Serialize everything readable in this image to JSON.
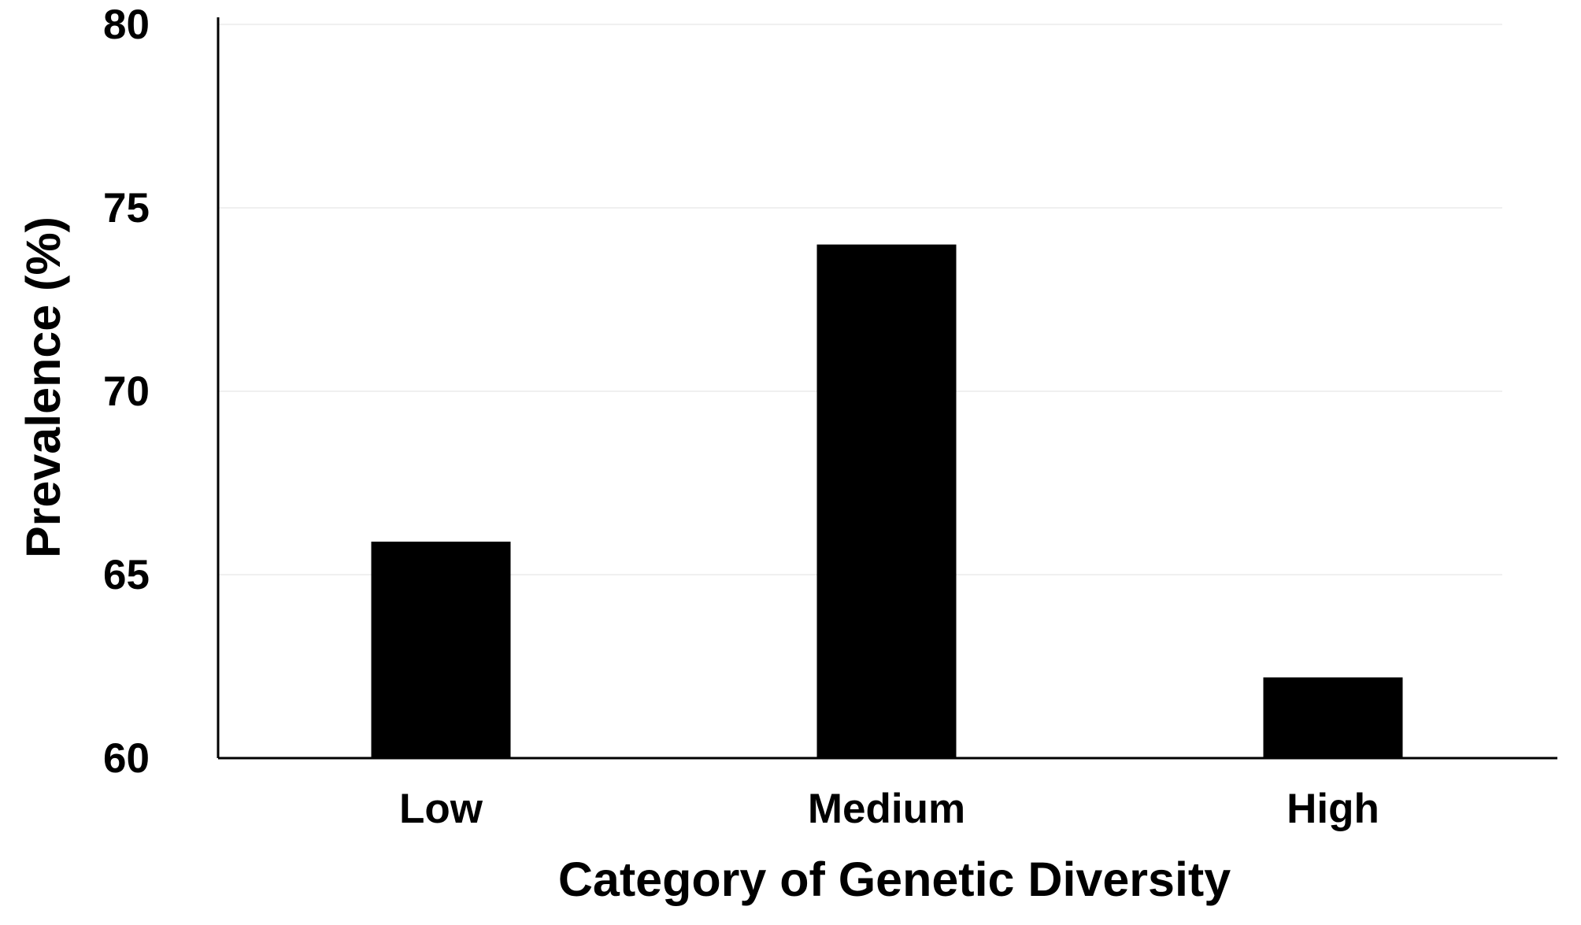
{
  "chart_data": {
    "type": "bar",
    "categories": [
      "Low",
      "Medium",
      "High"
    ],
    "values": [
      65.9,
      74.0,
      62.2
    ],
    "title": "",
    "xlabel": "Category of Genetic Diversity",
    "ylabel": "Prevalence (%)",
    "ylim": [
      60,
      80
    ],
    "yticks": [
      60,
      65,
      70,
      75,
      80
    ],
    "ytick_labels": [
      "60",
      "65",
      "70",
      "75",
      "80"
    ],
    "grid": true,
    "legend": "none",
    "bar_color": "#000000",
    "grid_color": "#f0f0f0",
    "axis_color": "#000000"
  }
}
